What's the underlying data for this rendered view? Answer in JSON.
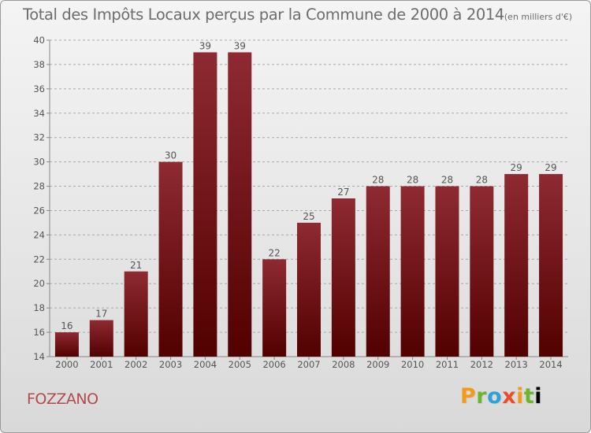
{
  "header": {
    "title": "Total des Impôts Locaux perçus par la Commune de 2000 à 2014",
    "unit": "(en milliers d'€)"
  },
  "footer": {
    "commune": "FOZZANO",
    "brand_letters": [
      "P",
      "r",
      "o",
      "x",
      "i",
      "t",
      "i"
    ]
  },
  "colors": {
    "bar_top": "#8e2a32",
    "bar_bottom": "#520000",
    "grid": "#a8a8a8",
    "text": "#555555",
    "commune": "#b24a4e"
  },
  "chart_data": {
    "type": "bar",
    "title": "Total des Impôts Locaux perçus par la Commune de 2000 à 2014 (en milliers d'€)",
    "xlabel": "",
    "ylabel": "",
    "categories": [
      "2000",
      "2001",
      "2002",
      "2003",
      "2004",
      "2005",
      "2006",
      "2007",
      "2008",
      "2009",
      "2010",
      "2011",
      "2012",
      "2013",
      "2014"
    ],
    "values": [
      16,
      17,
      21,
      30,
      39,
      39,
      22,
      25,
      27,
      28,
      28,
      28,
      28,
      29,
      29
    ],
    "ylim": [
      14,
      40
    ],
    "yticks": [
      14,
      16,
      18,
      20,
      22,
      24,
      26,
      28,
      30,
      32,
      34,
      36,
      38,
      40
    ],
    "grid": "horizontal dashed"
  }
}
